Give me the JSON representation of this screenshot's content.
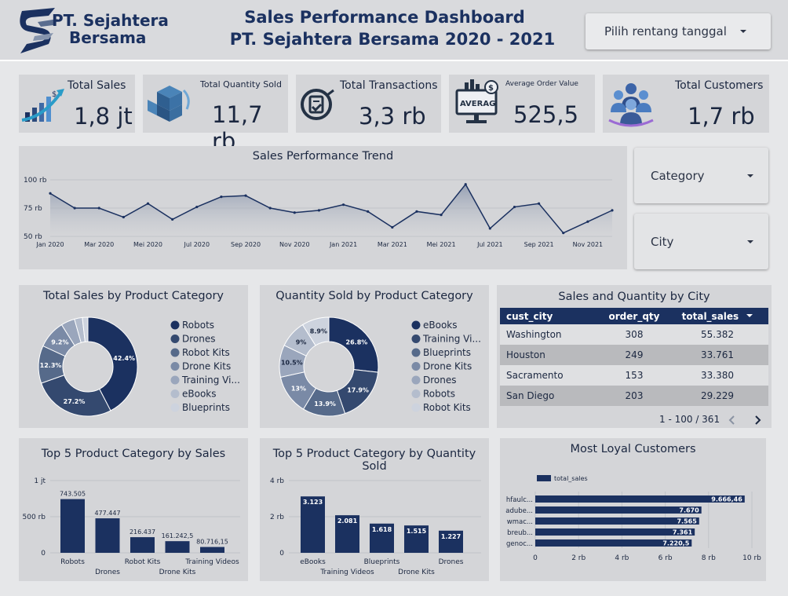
{
  "header": {
    "logo_line1": "PT. Sejahtera",
    "logo_line2": "Bersama",
    "title_line1": "Sales Performance Dashboard",
    "title_line2": "PT. Sejahtera Bersama 2020 - 2021",
    "date_filter_label": "Pilih rentang tanggal"
  },
  "kpis": [
    {
      "label": "Total Sales",
      "value": "1,8 jt",
      "icon": "growth-chart-icon"
    },
    {
      "label": "Total Quantity Sold",
      "value": "11,7 rb",
      "icon": "boxes-icon"
    },
    {
      "label": "Total Transactions",
      "value": "3,3 rb",
      "icon": "checklist-icon"
    },
    {
      "label": "Average Order Value",
      "value": "525,5",
      "icon": "monitor-chart-icon",
      "icon_text": "AVERAG"
    },
    {
      "label": "Total Customers",
      "value": "1,7 rb",
      "icon": "people-group-icon"
    }
  ],
  "filters": {
    "category": "Category",
    "city": "City"
  },
  "colors": {
    "navy": "#1b3160",
    "blue2": "#34496f",
    "blue3": "#566a8a",
    "blue4": "#7a8aa6",
    "blue5": "#9aa6bc",
    "blue6": "#b4bdcd",
    "blue7": "#cdd3de",
    "panel": "#d4d5d8"
  },
  "chart_data": [
    {
      "type": "area",
      "title": "Sales Performance Trend",
      "x_ticks": [
        "Jan 2020",
        "Mar 2020",
        "Mei 2020",
        "Jul 2020",
        "Sep 2020",
        "Nov 2020",
        "Jan 2021",
        "Mar 2021",
        "Mei 2021",
        "Jul 2021",
        "Sep 2021",
        "Nov 2021"
      ],
      "y_ticks": [
        "50 rb",
        "75 rb",
        "100 rb"
      ],
      "ylim": [
        50,
        100
      ],
      "unit": "rb",
      "values": [
        88,
        75,
        75,
        67,
        79,
        65,
        76,
        85,
        86,
        75,
        71,
        73,
        78,
        72,
        58,
        72,
        69,
        96,
        57,
        76,
        79,
        53,
        63,
        73
      ]
    },
    {
      "type": "pie",
      "title": "Total Sales by Product Category",
      "labels": [
        "Robots",
        "Drones",
        "Robot Kits",
        "Drone Kits",
        "Training Vi...",
        "eBooks",
        "Blueprints"
      ],
      "values": [
        42.4,
        27.2,
        12.3,
        9.2,
        4.5,
        2.6,
        1.8
      ],
      "slice_labels": [
        "42.4%",
        "27.2%",
        "12.3%",
        "9.2%",
        "",
        "",
        ""
      ]
    },
    {
      "type": "pie",
      "title": "Quantity Sold by Product Category",
      "labels": [
        "eBooks",
        "Training Vi...",
        "Blueprints",
        "Drone Kits",
        "Drones",
        "Robots",
        "Robot Kits"
      ],
      "values": [
        26.8,
        17.9,
        13.9,
        13,
        10.5,
        9,
        8.9
      ],
      "slice_labels": [
        "26.8%",
        "17.9%",
        "13.9%",
        "13%",
        "10.5%",
        "9%",
        "8.9%"
      ]
    },
    {
      "type": "table",
      "title": "Sales and Quantity by City",
      "columns": [
        "cust_city",
        "order_qty",
        "total_sales"
      ],
      "rows": [
        [
          "Washington",
          "308",
          "55.382"
        ],
        [
          "Houston",
          "249",
          "33.761"
        ],
        [
          "Sacramento",
          "153",
          "33.380"
        ],
        [
          "San Diego",
          "203",
          "29.229"
        ]
      ],
      "pagination": "1 - 100 / 361"
    },
    {
      "type": "bar",
      "title": "Top 5 Product Category by Sales",
      "categories": [
        "Robots",
        "Drones",
        "Robot Kits",
        "Drone Kits",
        "Training Videos"
      ],
      "values": [
        743505,
        477447,
        216437,
        161242.5,
        80716.15
      ],
      "value_labels": [
        "743.505",
        "477.447",
        "216.437",
        "161.242,5",
        "80.716,15"
      ],
      "y_ticks": [
        "0",
        "500 rb",
        "1 jt"
      ],
      "ylim": [
        0,
        1000000
      ]
    },
    {
      "type": "bar",
      "title": "Top 5 Product Category by Quantity Sold",
      "categories": [
        "eBooks",
        "Training Videos",
        "Blueprints",
        "Drone Kits",
        "Drones"
      ],
      "values": [
        3123,
        2081,
        1618,
        1515,
        1227
      ],
      "value_labels": [
        "3.123",
        "2.081",
        "1.618",
        "1.515",
        "1.227"
      ],
      "y_ticks": [
        "0",
        "2 rb",
        "4 rb"
      ],
      "ylim": [
        0,
        4000
      ]
    },
    {
      "type": "bar",
      "orientation": "horizontal",
      "title": "Most Loyal Customers",
      "legend": "total_sales",
      "categories": [
        "hfaulc...",
        "adube...",
        "wmac...",
        "breub...",
        "genoc..."
      ],
      "values": [
        9666.46,
        7670,
        7565,
        7361,
        7220.5
      ],
      "value_labels": [
        "9.666,46",
        "7.670",
        "7.565",
        "7.361",
        "7.220,5"
      ],
      "x_ticks": [
        "0",
        "2 rb",
        "4 rb",
        "6 rb",
        "8 rb",
        "10 rb"
      ],
      "xlim": [
        0,
        10000
      ]
    }
  ]
}
